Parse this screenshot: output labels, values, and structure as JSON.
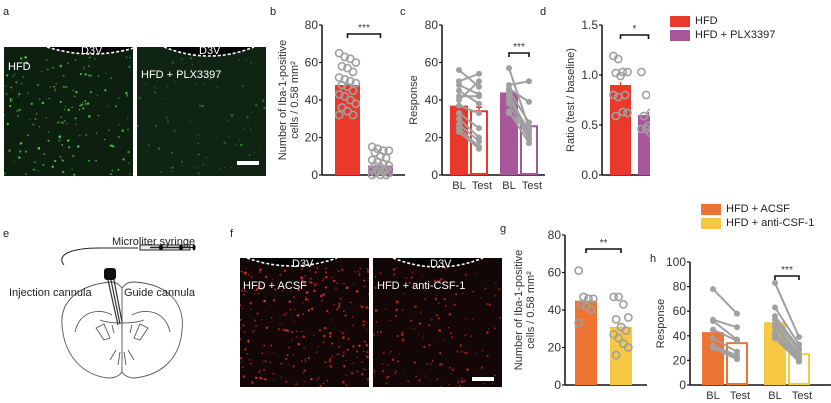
{
  "panels": {
    "a": {
      "letter": "a",
      "images": [
        {
          "label": "HFD",
          "ventricle": "D3V",
          "stain": "green"
        },
        {
          "label": "HFD + PLX3397",
          "ventricle": "D3V",
          "stain": "green",
          "scalebar": true
        }
      ]
    },
    "e": {
      "letter": "e",
      "labels": {
        "syringe": "Microliter syringe",
        "injection": "Injection cannula",
        "guide": "Guide cannula"
      }
    },
    "f": {
      "letter": "f",
      "images": [
        {
          "label": "HFD + ACSF",
          "ventricle": "D3V",
          "stain": "red"
        },
        {
          "label": "HFD + anti-CSF-1",
          "ventricle": "D3V",
          "stain": "red",
          "scalebar": true
        }
      ]
    }
  },
  "legends": {
    "top": [
      {
        "label": "HFD",
        "color": "#e8392b"
      },
      {
        "label": "HFD + PLX3397",
        "color": "#a9579b"
      }
    ],
    "bottom": [
      {
        "label": "HFD + ACSF",
        "color": "#ee7433"
      },
      {
        "label": "HFD + anti-CSF-1",
        "color": "#f7c843"
      }
    ]
  },
  "chart_data": [
    {
      "id": "b",
      "letter": "b",
      "type": "bar",
      "ylabel_line1": "Number of Iba-1-positive",
      "ylabel_line2": "cells / 0.58 mm²",
      "ylim": [
        0,
        80
      ],
      "yticks": [
        0,
        20,
        40,
        60,
        80
      ],
      "categories": [
        "HFD",
        "HFD + PLX3397"
      ],
      "values": [
        48,
        5
      ],
      "colors": [
        "#e8392b",
        "#a9579b"
      ],
      "points": [
        [
          65,
          63,
          62,
          60,
          58,
          57,
          55,
          52,
          51,
          50,
          49,
          48,
          47,
          45,
          43,
          42,
          40,
          38,
          36,
          34,
          32,
          32
        ],
        [
          15,
          14,
          13,
          13,
          12,
          10,
          9,
          8,
          7,
          6,
          5,
          5,
          4,
          3,
          3,
          2,
          2,
          1,
          1,
          0,
          0,
          0
        ]
      ],
      "significance": "***"
    },
    {
      "id": "c",
      "letter": "c",
      "type": "bar-paired",
      "ylabel": "Response",
      "ylim": [
        0,
        80
      ],
      "yticks": [
        0,
        20,
        40,
        60,
        80
      ],
      "categories": [
        "BL",
        "Test",
        "BL",
        "Test"
      ],
      "groups": [
        {
          "name": "HFD",
          "color": "#e8392b",
          "bl": 37,
          "test": 34,
          "pairs": [
            [
              56,
              47
            ],
            [
              50,
              54
            ],
            [
              48,
              43
            ],
            [
              45,
              38
            ],
            [
              42,
              42
            ],
            [
              40,
              50
            ],
            [
              37,
              33
            ],
            [
              33,
              25
            ],
            [
              30,
              20
            ],
            [
              27,
              18
            ],
            [
              25,
              15
            ],
            [
              23,
              14
            ]
          ]
        },
        {
          "name": "HFD + PLX3397",
          "color": "#a9579b",
          "bl": 44,
          "test": 26,
          "pairs": [
            [
              57,
              25
            ],
            [
              48,
              50
            ],
            [
              46,
              39
            ],
            [
              45,
              28
            ],
            [
              43,
              22
            ],
            [
              42,
              20
            ],
            [
              40,
              24
            ],
            [
              38,
              19
            ],
            [
              34,
              17
            ],
            [
              33,
              23
            ]
          ]
        }
      ],
      "significance": "***"
    },
    {
      "id": "d",
      "letter": "d",
      "type": "bar",
      "ylabel": "Ratio (test / baseline)",
      "ylim": [
        0,
        1.5
      ],
      "yticks": [
        "0.0",
        "0.5",
        "1.0",
        "1.5"
      ],
      "categories": [
        "HFD",
        "HFD + PLX3397"
      ],
      "values": [
        0.9,
        0.6
      ],
      "colors": [
        "#e8392b",
        "#a9579b"
      ],
      "points": [
        [
          1.19,
          1.16,
          1.03,
          1.03,
          1.02,
          0.99,
          0.8,
          0.8,
          0.78,
          0.63,
          0.62,
          0.59
        ],
        [
          1.03,
          0.8,
          0.62,
          0.62,
          0.59,
          0.49,
          0.47,
          0.46,
          0.46,
          0.42,
          0.4
        ]
      ],
      "significance": "*"
    },
    {
      "id": "g",
      "letter": "g",
      "type": "bar",
      "ylabel_line1": "Number of Iba-1-positive",
      "ylabel_line2": "cells / 0.58 mm²",
      "ylim": [
        0,
        80
      ],
      "yticks": [
        0,
        20,
        40,
        60,
        80
      ],
      "categories": [
        "HFD + ACSF",
        "HFD + anti-CSF-1"
      ],
      "values": [
        45,
        31
      ],
      "colors": [
        "#ee7433",
        "#f7c843"
      ],
      "points": [
        [
          61,
          47,
          46,
          46,
          43,
          42,
          40,
          33
        ],
        [
          47,
          47,
          43,
          36,
          35,
          31,
          29,
          27,
          25,
          22,
          20,
          16
        ]
      ],
      "significance": "**"
    },
    {
      "id": "h",
      "letter": "h",
      "type": "bar-paired",
      "ylabel": "Response",
      "ylim": [
        0,
        100
      ],
      "yticks": [
        0,
        20,
        40,
        60,
        80,
        100
      ],
      "categories": [
        "BL",
        "Test",
        "BL",
        "Test"
      ],
      "groups": [
        {
          "name": "HFD + ACSF",
          "color": "#ee7433",
          "bl": 43,
          "test": 34,
          "pairs": [
            [
              78,
              58
            ],
            [
              53,
              47
            ],
            [
              52,
              37
            ],
            [
              45,
              36
            ],
            [
              38,
              27
            ],
            [
              32,
              24
            ],
            [
              31,
              22
            ],
            [
              30,
              21
            ]
          ]
        },
        {
          "name": "HFD + anti-CSF-1",
          "color": "#f7c843",
          "bl": 51,
          "test": 25,
          "pairs": [
            [
              83,
              39
            ],
            [
              63,
              33
            ],
            [
              56,
              30
            ],
            [
              53,
              28
            ],
            [
              50,
              25
            ],
            [
              47,
              23
            ],
            [
              43,
              22
            ],
            [
              41,
              20
            ],
            [
              38,
              19
            ]
          ]
        }
      ],
      "significance": "***"
    }
  ]
}
